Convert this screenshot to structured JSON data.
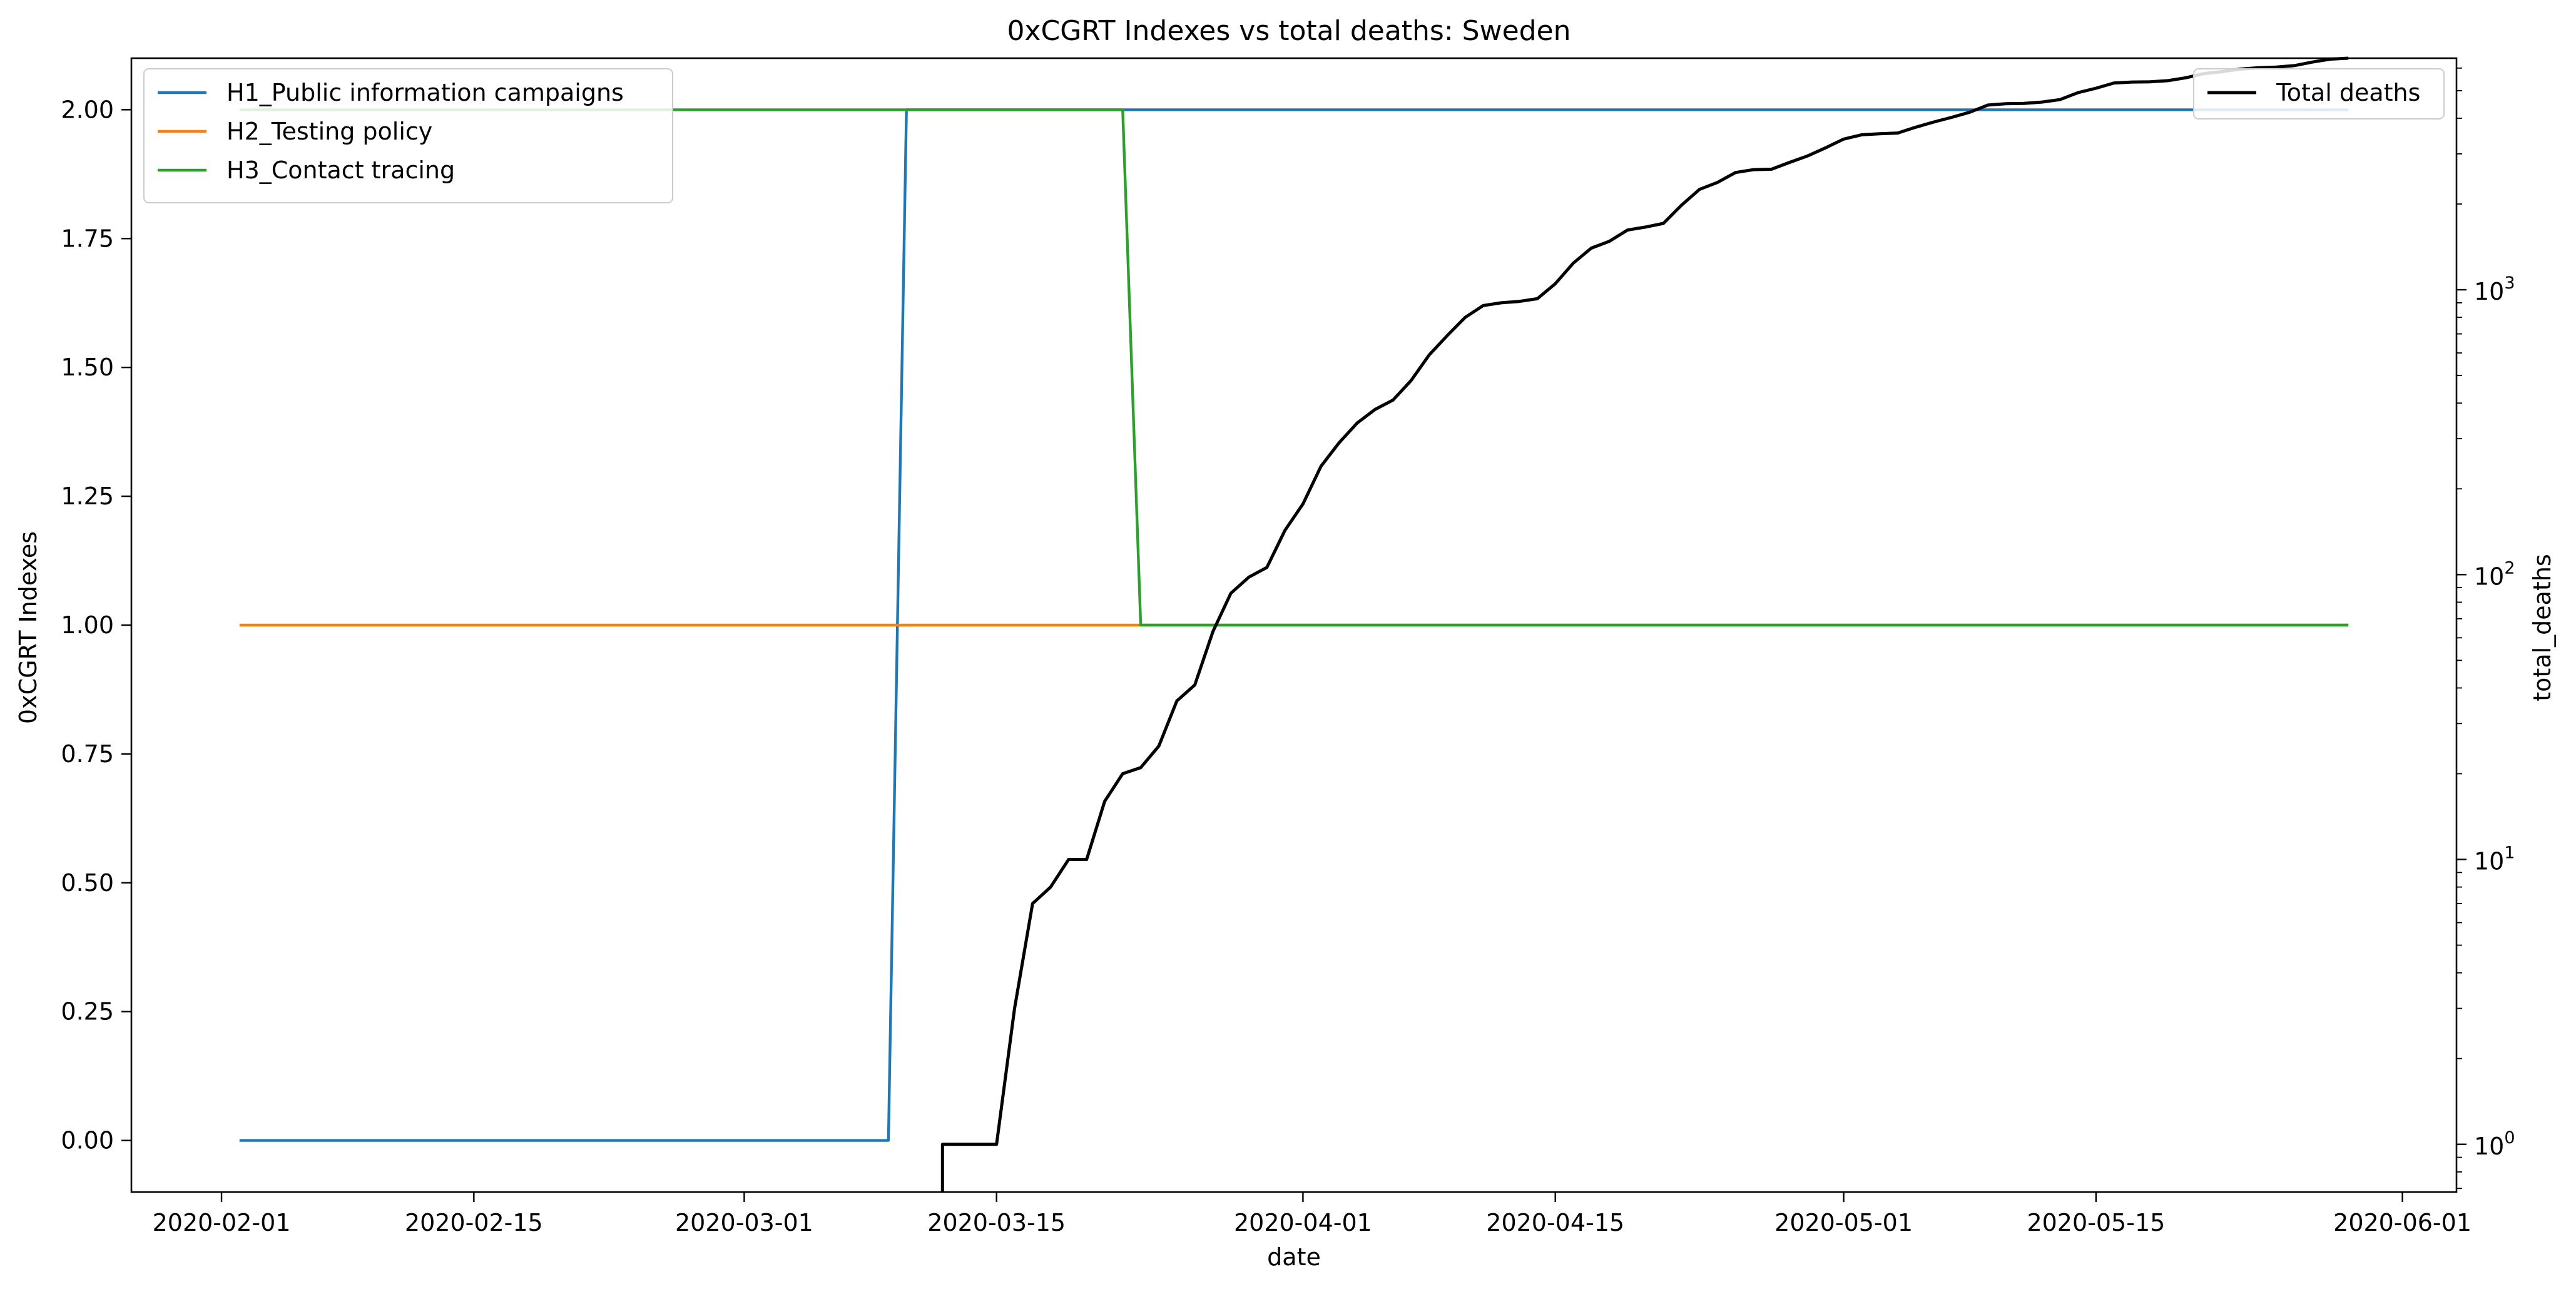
{
  "chart_data": {
    "type": "line",
    "title": "0xCGRT Indexes vs total deaths:  Sweden",
    "xlabel": "date",
    "ylabel": "0xCGRT Indexes",
    "y2label": "total_deaths",
    "y2scale": "log",
    "xlim": [
      "2020-01-27",
      "2020-06-04"
    ],
    "ylim": [
      -0.1,
      2.1
    ],
    "y2lim": [
      0.68,
      6500
    ],
    "xticks": [
      "2020-02-01",
      "2020-02-15",
      "2020-03-01",
      "2020-03-15",
      "2020-04-01",
      "2020-04-15",
      "2020-05-01",
      "2020-05-15",
      "2020-06-01"
    ],
    "yticks": [
      "0.00",
      "0.25",
      "0.50",
      "0.75",
      "1.00",
      "1.25",
      "1.50",
      "1.75",
      "2.00"
    ],
    "y2ticks": [
      {
        "value": 1,
        "base": "10",
        "exp": "0"
      },
      {
        "value": 10,
        "base": "10",
        "exp": "1"
      },
      {
        "value": 100,
        "base": "10",
        "exp": "2"
      },
      {
        "value": 1000,
        "base": "10",
        "exp": "3"
      }
    ],
    "grid": false,
    "legend_left_placement": "upper-left",
    "legend_right_placement": "upper-right",
    "series": [
      {
        "name": "H1_Public information campaigns",
        "axis": "left",
        "color": "#1f77b4",
        "points": [
          [
            "2020-02-02",
            0
          ],
          [
            "2020-03-09",
            0
          ],
          [
            "2020-03-10",
            2
          ],
          [
            "2020-05-29",
            2
          ]
        ]
      },
      {
        "name": "H2_Testing policy",
        "axis": "left",
        "color": "#ff7f0e",
        "points": [
          [
            "2020-02-02",
            1
          ],
          [
            "2020-05-29",
            1
          ]
        ]
      },
      {
        "name": "H3_Contact tracing",
        "axis": "left",
        "color": "#2ca02c",
        "points": [
          [
            "2020-02-02",
            2
          ],
          [
            "2020-03-22",
            2
          ],
          [
            "2020-03-23",
            1
          ],
          [
            "2020-05-29",
            1
          ]
        ]
      },
      {
        "name": "Total deaths",
        "axis": "right",
        "color": "#000000",
        "points": [
          [
            "2020-03-12",
            0.5
          ],
          [
            "2020-03-12",
            1
          ],
          [
            "2020-03-13",
            1
          ],
          [
            "2020-03-14",
            1
          ],
          [
            "2020-03-15",
            1
          ],
          [
            "2020-03-16",
            3
          ],
          [
            "2020-03-17",
            7
          ],
          [
            "2020-03-18",
            8
          ],
          [
            "2020-03-19",
            10
          ],
          [
            "2020-03-20",
            10
          ],
          [
            "2020-03-21",
            16
          ],
          [
            "2020-03-22",
            20
          ],
          [
            "2020-03-23",
            21
          ],
          [
            "2020-03-24",
            25
          ],
          [
            "2020-03-25",
            36
          ],
          [
            "2020-03-26",
            41
          ],
          [
            "2020-03-27",
            63
          ],
          [
            "2020-03-28",
            86
          ],
          [
            "2020-03-29",
            98
          ],
          [
            "2020-03-30",
            106
          ],
          [
            "2020-03-31",
            143
          ],
          [
            "2020-04-01",
            177
          ],
          [
            "2020-04-02",
            240
          ],
          [
            "2020-04-03",
            290
          ],
          [
            "2020-04-04",
            340
          ],
          [
            "2020-04-05",
            380
          ],
          [
            "2020-04-06",
            410
          ],
          [
            "2020-04-07",
            480
          ],
          [
            "2020-04-08",
            590
          ],
          [
            "2020-04-09",
            690
          ],
          [
            "2020-04-10",
            800
          ],
          [
            "2020-04-11",
            880
          ],
          [
            "2020-04-12",
            900
          ],
          [
            "2020-04-13",
            910
          ],
          [
            "2020-04-14",
            930
          ],
          [
            "2020-04-15",
            1050
          ],
          [
            "2020-04-16",
            1240
          ],
          [
            "2020-04-17",
            1400
          ],
          [
            "2020-04-18",
            1480
          ],
          [
            "2020-04-19",
            1620
          ],
          [
            "2020-04-20",
            1660
          ],
          [
            "2020-04-21",
            1710
          ],
          [
            "2020-04-22",
            1980
          ],
          [
            "2020-04-23",
            2250
          ],
          [
            "2020-04-24",
            2380
          ],
          [
            "2020-04-25",
            2580
          ],
          [
            "2020-04-26",
            2640
          ],
          [
            "2020-04-27",
            2650
          ],
          [
            "2020-04-28",
            2800
          ],
          [
            "2020-04-29",
            2950
          ],
          [
            "2020-04-30",
            3150
          ],
          [
            "2020-05-01",
            3380
          ],
          [
            "2020-05-02",
            3500
          ],
          [
            "2020-05-03",
            3530
          ],
          [
            "2020-05-04",
            3550
          ],
          [
            "2020-05-05",
            3720
          ],
          [
            "2020-05-06",
            3880
          ],
          [
            "2020-05-07",
            4030
          ],
          [
            "2020-05-08",
            4200
          ],
          [
            "2020-05-09",
            4450
          ],
          [
            "2020-05-10",
            4500
          ],
          [
            "2020-05-11",
            4510
          ],
          [
            "2020-05-12",
            4560
          ],
          [
            "2020-05-13",
            4650
          ],
          [
            "2020-05-14",
            4920
          ],
          [
            "2020-05-15",
            5100
          ],
          [
            "2020-05-16",
            5320
          ],
          [
            "2020-05-17",
            5360
          ],
          [
            "2020-05-18",
            5370
          ],
          [
            "2020-05-19",
            5420
          ],
          [
            "2020-05-20",
            5550
          ],
          [
            "2020-05-21",
            5740
          ],
          [
            "2020-05-22",
            5830
          ],
          [
            "2020-05-23",
            5950
          ],
          [
            "2020-05-24",
            6020
          ],
          [
            "2020-05-25",
            6050
          ],
          [
            "2020-05-26",
            6120
          ],
          [
            "2020-05-27",
            6300
          ],
          [
            "2020-05-28",
            6450
          ],
          [
            "2020-05-29",
            6500
          ]
        ]
      }
    ]
  }
}
